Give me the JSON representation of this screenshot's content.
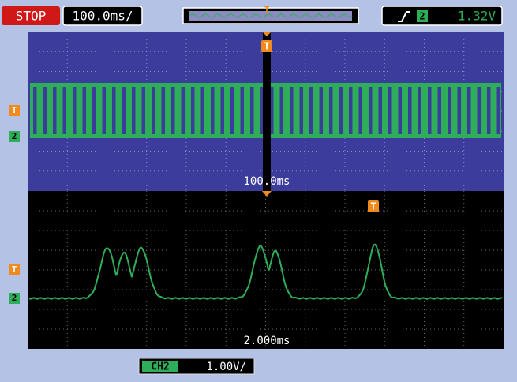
{
  "status": {
    "run_state": "STOP",
    "timebase": "100.0ms/"
  },
  "trigger": {
    "source": "2",
    "level": "1.32V"
  },
  "markers": {
    "trigger": "T",
    "channel": "2"
  },
  "main_window": {
    "timebase_label": "100.0ms"
  },
  "zoom_window": {
    "timebase_label": "2.000ms"
  },
  "channel": {
    "name": "CH2",
    "scale": "1.00V/"
  }
}
